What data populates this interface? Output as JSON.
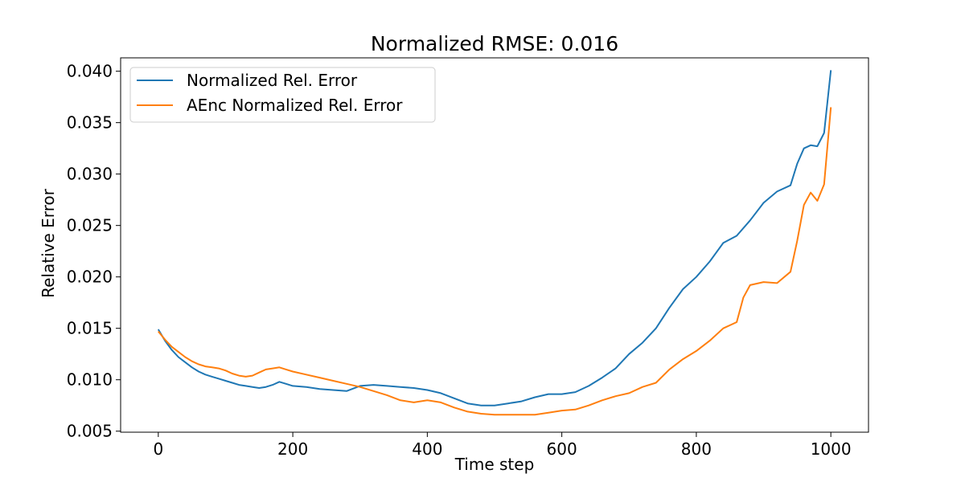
{
  "chart_data": {
    "type": "line",
    "title": "Normalized RMSE: 0.016",
    "xlabel": "Time step",
    "ylabel": "Relative Error",
    "xlim": [
      -56,
      1056
    ],
    "ylim": [
      0.0049,
      0.0413
    ],
    "x_ticks": [
      0,
      200,
      400,
      600,
      800,
      1000
    ],
    "x_tick_labels": [
      "0",
      "200",
      "400",
      "600",
      "800",
      "1000"
    ],
    "y_ticks": [
      0.005,
      0.01,
      0.015,
      0.02,
      0.025,
      0.03,
      0.035,
      0.04
    ],
    "y_tick_labels": [
      "0.005",
      "0.010",
      "0.015",
      "0.020",
      "0.025",
      "0.030",
      "0.035",
      "0.040"
    ],
    "grid": false,
    "legend_position": "top-left",
    "series": [
      {
        "name": "Normalized Rel. Error",
        "color": "#1f77b4",
        "x": [
          0,
          10,
          20,
          30,
          40,
          50,
          60,
          70,
          80,
          90,
          100,
          110,
          120,
          130,
          140,
          150,
          160,
          170,
          180,
          190,
          200,
          220,
          240,
          260,
          280,
          300,
          320,
          340,
          360,
          380,
          400,
          420,
          440,
          460,
          480,
          500,
          520,
          540,
          560,
          580,
          600,
          620,
          640,
          660,
          680,
          700,
          720,
          740,
          760,
          780,
          800,
          820,
          840,
          860,
          880,
          900,
          920,
          940,
          950,
          960,
          970,
          980,
          990,
          1000
        ],
        "y": [
          0.0149,
          0.0138,
          0.0129,
          0.0122,
          0.0117,
          0.0112,
          0.0108,
          0.0105,
          0.0103,
          0.0101,
          0.0099,
          0.0097,
          0.0095,
          0.0094,
          0.0093,
          0.0092,
          0.0093,
          0.0095,
          0.0098,
          0.0096,
          0.0094,
          0.0093,
          0.0091,
          0.009,
          0.0089,
          0.0094,
          0.0095,
          0.0094,
          0.0093,
          0.0092,
          0.009,
          0.0087,
          0.0082,
          0.0077,
          0.0075,
          0.0075,
          0.0077,
          0.0079,
          0.0083,
          0.0086,
          0.0086,
          0.0088,
          0.0094,
          0.0102,
          0.0111,
          0.0125,
          0.0136,
          0.015,
          0.017,
          0.0188,
          0.02,
          0.0215,
          0.0233,
          0.024,
          0.0255,
          0.0272,
          0.0283,
          0.0289,
          0.031,
          0.0325,
          0.0328,
          0.0327,
          0.034,
          0.0401
        ]
      },
      {
        "name": "AEnc Normalized Rel. Error",
        "color": "#ff7f0e",
        "x": [
          0,
          10,
          20,
          30,
          40,
          50,
          60,
          70,
          80,
          90,
          100,
          110,
          120,
          130,
          140,
          150,
          160,
          170,
          180,
          190,
          200,
          220,
          240,
          260,
          280,
          300,
          320,
          340,
          360,
          380,
          400,
          420,
          440,
          460,
          480,
          500,
          520,
          540,
          560,
          580,
          600,
          620,
          640,
          660,
          680,
          700,
          720,
          740,
          760,
          780,
          800,
          820,
          840,
          860,
          870,
          880,
          900,
          920,
          940,
          950,
          960,
          970,
          980,
          990,
          1000
        ],
        "y": [
          0.0147,
          0.0139,
          0.0132,
          0.0127,
          0.0122,
          0.0118,
          0.0115,
          0.0113,
          0.0112,
          0.0111,
          0.0109,
          0.0106,
          0.0104,
          0.0103,
          0.0104,
          0.0107,
          0.011,
          0.0111,
          0.0112,
          0.011,
          0.0108,
          0.0105,
          0.0102,
          0.0099,
          0.0096,
          0.0093,
          0.0089,
          0.0085,
          0.008,
          0.0078,
          0.008,
          0.0078,
          0.0073,
          0.0069,
          0.0067,
          0.0066,
          0.0066,
          0.0066,
          0.0066,
          0.0068,
          0.007,
          0.0071,
          0.0075,
          0.008,
          0.0084,
          0.0087,
          0.0093,
          0.0097,
          0.011,
          0.012,
          0.0128,
          0.0138,
          0.015,
          0.0156,
          0.018,
          0.0192,
          0.0195,
          0.0194,
          0.0205,
          0.0235,
          0.027,
          0.0282,
          0.0274,
          0.029,
          0.0365
        ]
      }
    ]
  }
}
